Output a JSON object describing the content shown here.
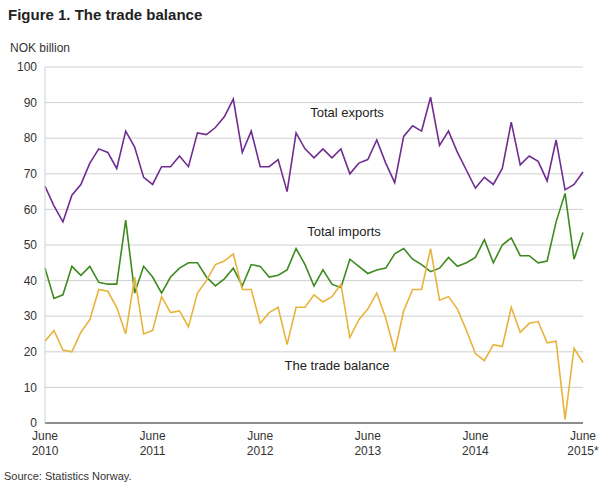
{
  "chart_data": {
    "type": "line",
    "title": "Figure 1. The trade balance",
    "y_label": "NOK billion",
    "source": "Source: Statistics Norway.",
    "categories": [
      "June 2010",
      null,
      null,
      null,
      null,
      null,
      null,
      null,
      null,
      null,
      null,
      null,
      "June 2011",
      null,
      null,
      null,
      null,
      null,
      null,
      null,
      null,
      null,
      null,
      null,
      "June 2012",
      null,
      null,
      null,
      null,
      null,
      null,
      null,
      null,
      null,
      null,
      null,
      "June 2013",
      null,
      null,
      null,
      null,
      null,
      null,
      null,
      null,
      null,
      null,
      null,
      "June 2014",
      null,
      null,
      null,
      null,
      null,
      null,
      null,
      null,
      null,
      null,
      null,
      "June 2015*"
    ],
    "series": [
      {
        "name": "Total exports",
        "color": "#6f2c91",
        "values": [
          66.5,
          61,
          56.5,
          64,
          67,
          73,
          77,
          76,
          71.5,
          82,
          77.5,
          69,
          67,
          72,
          72,
          75,
          72,
          81.5,
          81,
          83,
          86,
          91,
          76,
          82,
          72,
          72,
          74,
          65,
          81.5,
          77,
          74.5,
          77,
          74.5,
          77,
          70,
          73,
          74,
          79.5,
          73,
          67.5,
          80.5,
          83.5,
          82,
          91.5,
          78,
          82,
          76,
          71,
          66,
          69,
          67,
          71.5,
          84.5,
          72.5,
          75,
          73.5,
          68,
          79.5,
          65.5,
          67,
          70.5
        ]
      },
      {
        "name": "Total imports",
        "color": "#3d8a1f",
        "values": [
          43.5,
          35,
          36,
          44,
          41.5,
          44,
          39.5,
          39,
          39,
          57,
          36.5,
          44,
          41,
          36.5,
          41,
          43.5,
          45,
          45,
          41,
          38.5,
          40.5,
          43.5,
          38.5,
          44.5,
          44,
          41,
          41.5,
          43,
          49,
          44.5,
          38.5,
          43,
          39,
          38,
          46,
          44,
          42,
          43,
          43.5,
          47.5,
          49,
          46,
          44.5,
          42.5,
          43.5,
          46.5,
          44,
          45,
          46.5,
          51.5,
          45,
          50,
          52,
          47,
          47,
          45,
          45.5,
          56.5,
          64.5,
          46,
          53.5
        ]
      },
      {
        "name": "The trade balance",
        "color": "#e8b33b",
        "values": [
          23,
          26,
          20.5,
          20,
          25.5,
          29,
          37.5,
          37,
          32.5,
          25,
          41,
          25,
          26,
          35.5,
          31,
          31.5,
          27,
          36.5,
          40,
          44.5,
          45.5,
          47.5,
          37.5,
          37.5,
          28,
          31,
          32.5,
          22,
          32.5,
          32.5,
          36,
          34,
          35.5,
          39,
          24,
          29,
          32,
          36.5,
          29.5,
          20,
          31.5,
          37.5,
          37.5,
          49,
          34.5,
          35.5,
          32,
          26,
          19.5,
          17.5,
          22,
          21.5,
          32.5,
          25.5,
          28,
          28.5,
          22.5,
          23,
          1,
          21,
          17
        ]
      }
    ],
    "ylim": [
      0,
      100
    ],
    "yticks": [
      0,
      10,
      20,
      30,
      40,
      50,
      60,
      70,
      80,
      90,
      100
    ],
    "grid": true
  }
}
